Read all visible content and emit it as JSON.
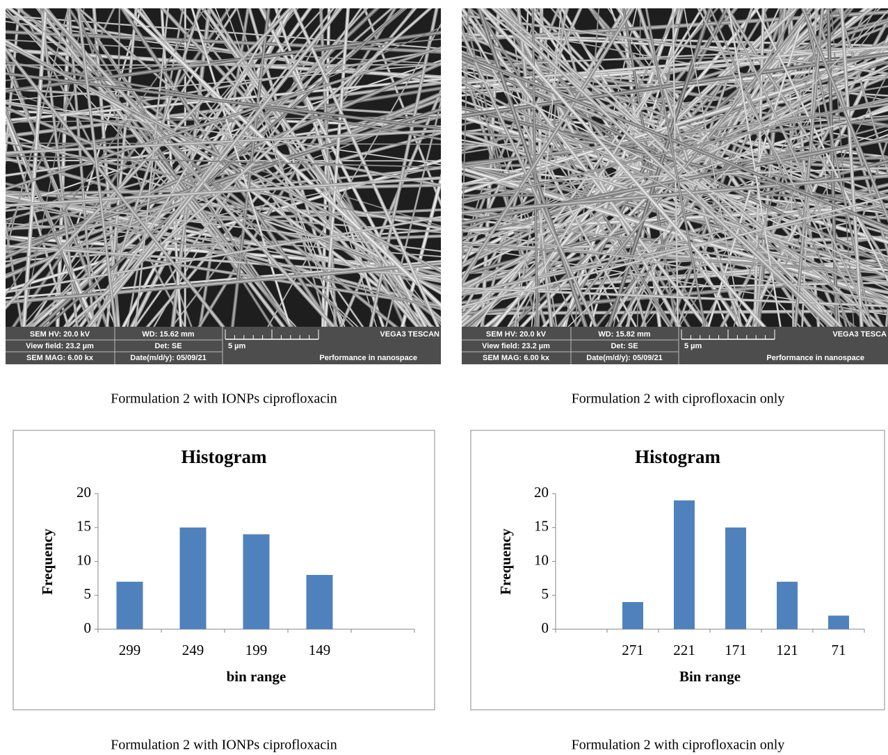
{
  "images": [
    {
      "hv": "SEM HV: 20.0 kV",
      "wd": "WD: 15.62 mm",
      "brand": "VEGA3 TESCAN",
      "view_field": "View field: 23.2 µm",
      "det": "Det: SE",
      "scale": "5 µm",
      "mag": "SEM MAG: 6.00 kx",
      "date": "Date(m/d/y): 05/09/21",
      "tagline": "Performance in nanospace",
      "caption": "Formulation 2 with IONPs ciprofloxacin"
    },
    {
      "hv": "SEM HV: 20.0 kV",
      "wd": "WD: 15.82 mm",
      "brand": "VEGA3 TESCA",
      "view_field": "View field: 23.2 µm",
      "det": "Det: SE",
      "scale": "5 µm",
      "mag": "SEM MAG: 6.00 kx",
      "date": "Date(m/d/y): 05/09/21",
      "tagline": "Performance in nanospace",
      "caption": "Formulation 2 with ciprofloxacin only"
    }
  ],
  "chart_data": [
    {
      "type": "bar",
      "title": "Histogram",
      "x_label": "bin range",
      "y_label": "Frequency",
      "categories": [
        "299",
        "249",
        "199",
        "149",
        null
      ],
      "values": [
        7,
        15,
        14,
        8,
        null
      ],
      "color": "#4f81bd",
      "ylim": [
        0,
        20
      ],
      "yticks": [
        0,
        5,
        10,
        15,
        20
      ],
      "grid": false
    },
    {
      "type": "bar",
      "title": "Histogram",
      "x_label": "Bin range",
      "y_label": "Frequency",
      "categories": [
        null,
        "271",
        "221",
        "171",
        "121",
        "71"
      ],
      "values": [
        null,
        4,
        19,
        15,
        7,
        2
      ],
      "color": "#4f81bd",
      "ylim": [
        0,
        20
      ],
      "yticks": [
        0,
        5,
        10,
        15,
        20
      ],
      "grid": false
    }
  ],
  "chart_captions": [
    "Formulation 2 with IONPs ciprofloxacin",
    "Formulation 2 with ciprofloxacin only"
  ]
}
